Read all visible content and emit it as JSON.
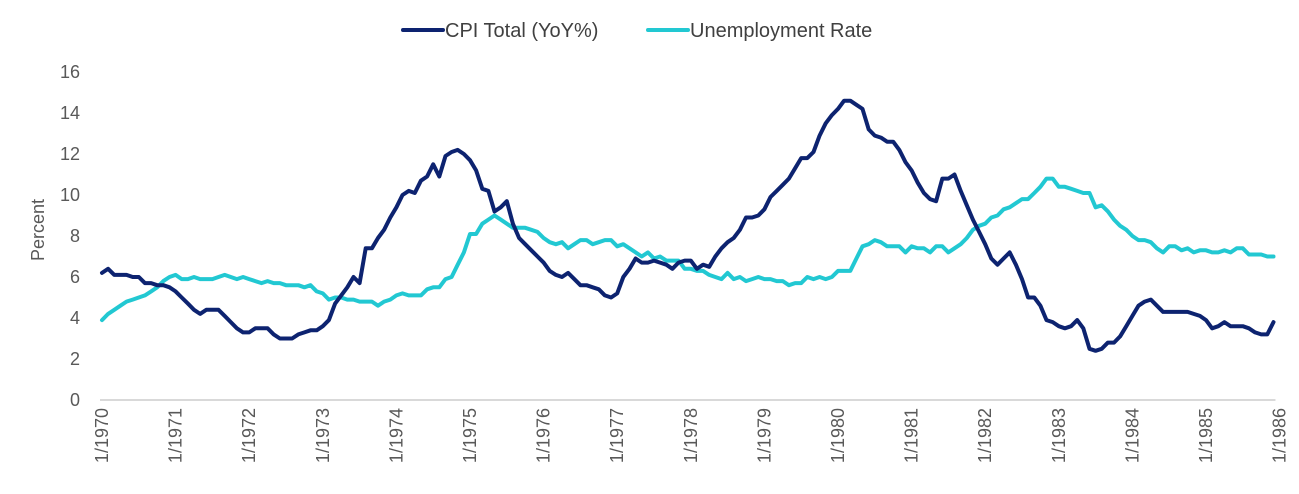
{
  "chart_data": {
    "type": "line",
    "title": "",
    "xlabel": "",
    "ylabel": "Percent",
    "ylim": [
      0,
      16
    ],
    "yticks": [
      0,
      2,
      4,
      6,
      8,
      10,
      12,
      14,
      16
    ],
    "grid": false,
    "legend_position": "top-center",
    "x_start": "1/1970",
    "x_frequency": "monthly",
    "xtick_labels": [
      "1/1970",
      "1/1971",
      "1/1972",
      "1/1973",
      "1/1974",
      "1/1975",
      "1/1976",
      "1/1977",
      "1/1978",
      "1/1979",
      "1/1980",
      "1/1981",
      "1/1982",
      "1/1983",
      "1/1984",
      "1/1985",
      "1/1986"
    ],
    "series": [
      {
        "name": "CPI Total (YoY%)",
        "color": "#0d2370",
        "values": [
          6.2,
          6.4,
          6.1,
          6.1,
          6.1,
          6.0,
          6.0,
          5.7,
          5.7,
          5.6,
          5.6,
          5.5,
          5.3,
          5.0,
          4.7,
          4.4,
          4.2,
          4.4,
          4.4,
          4.4,
          4.1,
          3.8,
          3.5,
          3.3,
          3.3,
          3.5,
          3.5,
          3.5,
          3.2,
          3.0,
          3.0,
          3.0,
          3.2,
          3.3,
          3.4,
          3.4,
          3.6,
          3.9,
          4.7,
          5.1,
          5.5,
          6.0,
          5.7,
          7.4,
          7.4,
          7.9,
          8.3,
          8.9,
          9.4,
          10.0,
          10.2,
          10.1,
          10.7,
          10.9,
          11.5,
          10.9,
          11.9,
          12.1,
          12.2,
          12.0,
          11.7,
          11.2,
          10.3,
          10.2,
          9.2,
          9.4,
          9.7,
          8.6,
          7.9,
          7.6,
          7.3,
          7.0,
          6.7,
          6.3,
          6.1,
          6.0,
          6.2,
          5.9,
          5.6,
          5.6,
          5.5,
          5.4,
          5.1,
          5.0,
          5.2,
          6.0,
          6.4,
          6.9,
          6.7,
          6.7,
          6.8,
          6.7,
          6.6,
          6.4,
          6.7,
          6.8,
          6.8,
          6.4,
          6.6,
          6.5,
          7.0,
          7.4,
          7.7,
          7.9,
          8.3,
          8.9,
          8.9,
          9.0,
          9.3,
          9.9,
          10.2,
          10.5,
          10.8,
          11.3,
          11.8,
          11.8,
          12.1,
          12.9,
          13.5,
          13.9,
          14.2,
          14.6,
          14.6,
          14.4,
          14.2,
          13.2,
          12.9,
          12.8,
          12.6,
          12.6,
          12.2,
          11.6,
          11.2,
          10.6,
          10.1,
          9.8,
          9.7,
          10.8,
          10.8,
          11.0,
          10.2,
          9.5,
          8.8,
          8.2,
          7.6,
          6.9,
          6.6,
          6.9,
          7.2,
          6.6,
          5.9,
          5.0,
          5.0,
          4.6,
          3.9,
          3.8,
          3.6,
          3.5,
          3.6,
          3.9,
          3.5,
          2.5,
          2.4,
          2.5,
          2.8,
          2.8,
          3.1,
          3.6,
          4.1,
          4.6,
          4.8,
          4.9,
          4.6,
          4.3,
          4.3,
          4.3,
          4.3,
          4.3,
          4.2,
          4.1,
          3.9,
          3.5,
          3.6,
          3.8,
          3.6,
          3.6,
          3.6,
          3.5,
          3.3,
          3.2,
          3.2,
          3.8
        ]
      },
      {
        "name": "Unemployment Rate",
        "color": "#22c8d2",
        "values": [
          3.9,
          4.2,
          4.4,
          4.6,
          4.8,
          4.9,
          5.0,
          5.1,
          5.3,
          5.5,
          5.8,
          6.0,
          6.1,
          5.9,
          5.9,
          6.0,
          5.9,
          5.9,
          5.9,
          6.0,
          6.1,
          6.0,
          5.9,
          6.0,
          5.9,
          5.8,
          5.7,
          5.8,
          5.7,
          5.7,
          5.6,
          5.6,
          5.6,
          5.5,
          5.6,
          5.3,
          5.2,
          4.9,
          5.0,
          5.0,
          4.9,
          4.9,
          4.8,
          4.8,
          4.8,
          4.6,
          4.8,
          4.9,
          5.1,
          5.2,
          5.1,
          5.1,
          5.1,
          5.4,
          5.5,
          5.5,
          5.9,
          6.0,
          6.6,
          7.2,
          8.1,
          8.1,
          8.6,
          8.8,
          9.0,
          8.8,
          8.6,
          8.4,
          8.4,
          8.4,
          8.3,
          8.2,
          7.9,
          7.7,
          7.6,
          7.7,
          7.4,
          7.6,
          7.8,
          7.8,
          7.6,
          7.7,
          7.8,
          7.8,
          7.5,
          7.6,
          7.4,
          7.2,
          7.0,
          7.2,
          6.9,
          7.0,
          6.8,
          6.8,
          6.8,
          6.4,
          6.4,
          6.3,
          6.3,
          6.1,
          6.0,
          5.9,
          6.2,
          5.9,
          6.0,
          5.8,
          5.9,
          6.0,
          5.9,
          5.9,
          5.8,
          5.8,
          5.6,
          5.7,
          5.7,
          6.0,
          5.9,
          6.0,
          5.9,
          6.0,
          6.3,
          6.3,
          6.3,
          6.9,
          7.5,
          7.6,
          7.8,
          7.7,
          7.5,
          7.5,
          7.5,
          7.2,
          7.5,
          7.4,
          7.4,
          7.2,
          7.5,
          7.5,
          7.2,
          7.4,
          7.6,
          7.9,
          8.3,
          8.5,
          8.6,
          8.9,
          9.0,
          9.3,
          9.4,
          9.6,
          9.8,
          9.8,
          10.1,
          10.4,
          10.8,
          10.8,
          10.4,
          10.4,
          10.3,
          10.2,
          10.1,
          10.1,
          9.4,
          9.5,
          9.2,
          8.8,
          8.5,
          8.3,
          8.0,
          7.8,
          7.8,
          7.7,
          7.4,
          7.2,
          7.5,
          7.5,
          7.3,
          7.4,
          7.2,
          7.3,
          7.3,
          7.2,
          7.2,
          7.3,
          7.2,
          7.4,
          7.4,
          7.1,
          7.1,
          7.1,
          7.0,
          7.0
        ]
      }
    ]
  },
  "colors": {
    "axis_line": "#d9d9d9",
    "tick_text": "#595959"
  }
}
